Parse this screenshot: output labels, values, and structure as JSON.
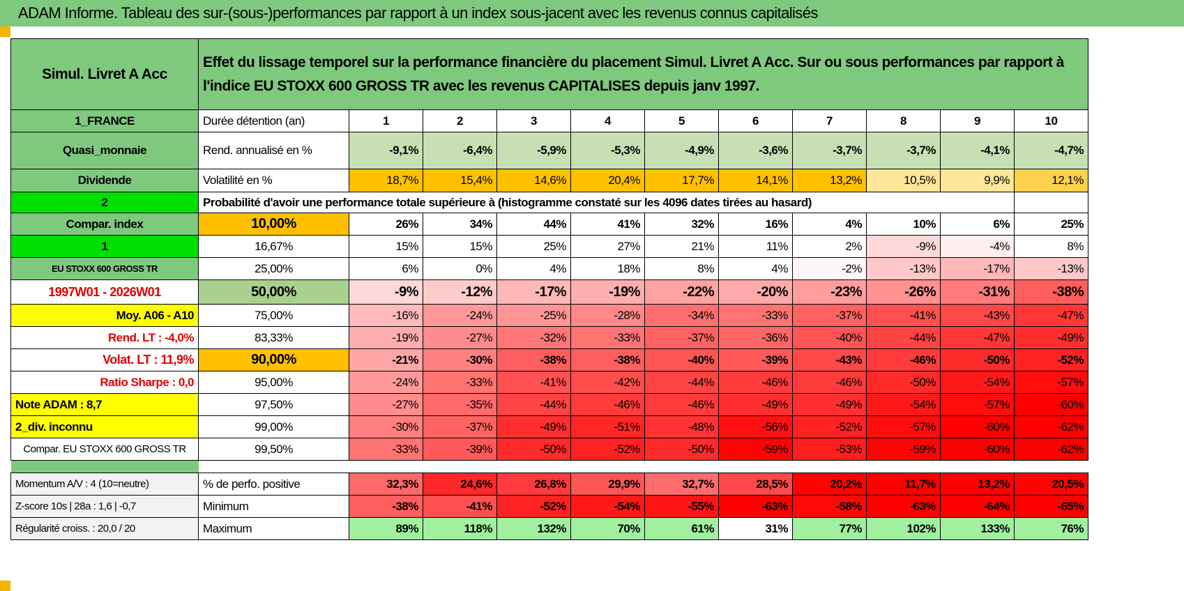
{
  "title": "ADAM Informe. Tableau des sur-(sous-)performances par rapport à un index sous-jacent avec les revenus connus capitalisés",
  "header": {
    "fund": "Simul. Livret A Acc",
    "description": "Effet du lissage temporel sur la performance financière du placement Simul. Livret A Acc. Sur ou sous performances par rapport à l'indice EU STOXX 600 GROSS TR avec les revenus CAPITALISES depuis janv 1997."
  },
  "durations": {
    "left": "1_FRANCE",
    "label": "Durée détention (an)",
    "values": [
      "1",
      "2",
      "3",
      "4",
      "5",
      "6",
      "7",
      "8",
      "9",
      "10"
    ]
  },
  "rend": {
    "left": "Quasi_monnaie",
    "label": "Rend. annualisé en %",
    "values": [
      "-9,1%",
      "-6,4%",
      "-5,9%",
      "-5,3%",
      "-4,9%",
      "-3,6%",
      "-3,7%",
      "-3,7%",
      "-4,1%",
      "-4,7%"
    ]
  },
  "vol": {
    "left": "Dividende",
    "label": "Volatilité en %",
    "values": [
      "18,7%",
      "15,4%",
      "14,6%",
      "20,4%",
      "17,7%",
      "14,1%",
      "13,2%",
      "10,5%",
      "9,9%",
      "12,1%"
    ]
  },
  "prob": {
    "left": "2",
    "label": "Probabilité d'avoir une performance totale supérieure à (histogramme constaté sur les 4096 dates tirées au hasard)"
  },
  "percentile_rows": [
    {
      "left": "Compar. index",
      "threshold": "10,00%",
      "values": [
        "26%",
        "34%",
        "44%",
        "41%",
        "32%",
        "16%",
        "4%",
        "10%",
        "6%",
        "25%"
      ]
    },
    {
      "left": "1",
      "threshold": "16,67%",
      "values": [
        "15%",
        "15%",
        "25%",
        "27%",
        "21%",
        "11%",
        "2%",
        "-9%",
        "-4%",
        "8%"
      ]
    },
    {
      "left": "EU STOXX 600 GROSS TR",
      "threshold": "25,00%",
      "values": [
        "6%",
        "0%",
        "4%",
        "18%",
        "8%",
        "4%",
        "-2%",
        "-13%",
        "-17%",
        "-13%"
      ]
    },
    {
      "left": "1997W01 - 2026W01",
      "threshold": "50,00%",
      "values": [
        "-9%",
        "-12%",
        "-17%",
        "-19%",
        "-22%",
        "-20%",
        "-23%",
        "-26%",
        "-31%",
        "-38%"
      ]
    },
    {
      "left": "Moy. A06 - A10",
      "threshold": "75,00%",
      "values": [
        "-16%",
        "-24%",
        "-25%",
        "-28%",
        "-34%",
        "-33%",
        "-37%",
        "-41%",
        "-43%",
        "-47%"
      ]
    },
    {
      "left": "Rend. LT :   -4,0%",
      "threshold": "83,33%",
      "values": [
        "-19%",
        "-27%",
        "-32%",
        "-33%",
        "-37%",
        "-36%",
        "-40%",
        "-44%",
        "-47%",
        "-49%"
      ]
    },
    {
      "left": "Volat. LT :   11,9%",
      "threshold": "90,00%",
      "values": [
        "-21%",
        "-30%",
        "-38%",
        "-38%",
        "-40%",
        "-39%",
        "-43%",
        "-46%",
        "-50%",
        "-52%"
      ]
    },
    {
      "left": "Ratio Sharpe :    0,0",
      "threshold": "95,00%",
      "values": [
        "-24%",
        "-33%",
        "-41%",
        "-42%",
        "-44%",
        "-46%",
        "-46%",
        "-50%",
        "-54%",
        "-57%"
      ]
    },
    {
      "left": "Note ADAM : 8,7",
      "threshold": "97,50%",
      "values": [
        "-27%",
        "-35%",
        "-44%",
        "-46%",
        "-46%",
        "-49%",
        "-49%",
        "-54%",
        "-57%",
        "-60%"
      ]
    },
    {
      "left": "2_div. inconnu",
      "threshold": "99,00%",
      "values": [
        "-30%",
        "-37%",
        "-49%",
        "-51%",
        "-48%",
        "-56%",
        "-52%",
        "-57%",
        "-60%",
        "-62%"
      ]
    },
    {
      "left": "Compar. EU STOXX 600 GROSS TR",
      "threshold": "99,50%",
      "values": [
        "-33%",
        "-39%",
        "-50%",
        "-52%",
        "-50%",
        "-59%",
        "-53%",
        "-59%",
        "-60%",
        "-62%"
      ]
    }
  ],
  "stats_rows": [
    {
      "left": "Momentum A/V : 4 (10=neutre)",
      "label": "% de perfo. positive",
      "values": [
        "32,3%",
        "24,6%",
        "26,8%",
        "29,9%",
        "32,7%",
        "28,5%",
        "20,2%",
        "11,7%",
        "13,2%",
        "20,5%"
      ]
    },
    {
      "left": "Z-score 10s | 28a : 1,6 | -0,7",
      "label": "Minimum",
      "values": [
        "-38%",
        "-41%",
        "-52%",
        "-54%",
        "-55%",
        "-63%",
        "-58%",
        "-63%",
        "-64%",
        "-65%"
      ]
    },
    {
      "left": "Régularité croiss. : 20,0 / 20",
      "label": "Maximum",
      "values": [
        "89%",
        "118%",
        "132%",
        "70%",
        "61%",
        "31%",
        "77%",
        "102%",
        "133%",
        "76%"
      ]
    }
  ],
  "colors": {
    "title_bg": "#7fc97f",
    "rend_bg": "#c6e0b4",
    "vol_bg": "#ffc000",
    "negative": "#ff0000",
    "positive": "#63d063",
    "highlight_yellow": "#ffff00",
    "lime": "#00e000"
  }
}
